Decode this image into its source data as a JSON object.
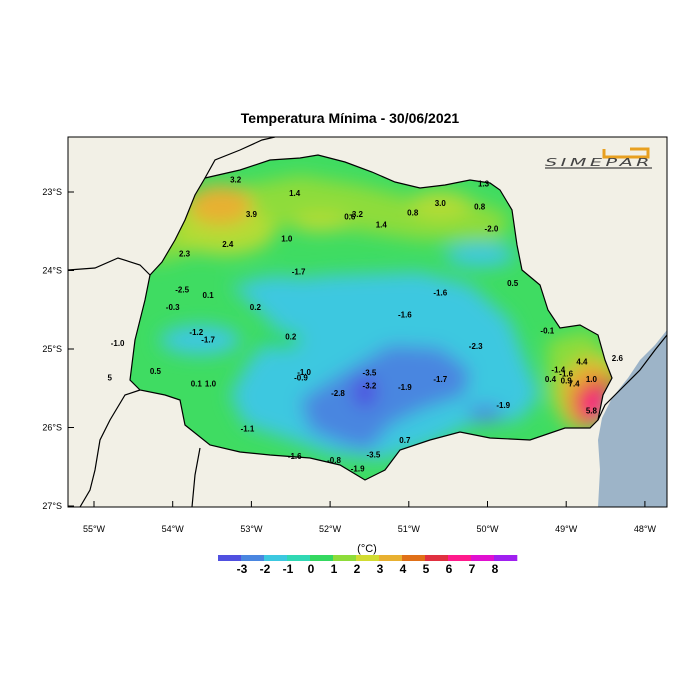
{
  "title": "Temperatura Mínima - 30/06/2021",
  "logo_text": "SIMEPAR",
  "unit_label": "(°C)",
  "lat_labels": [
    {
      "v": -23,
      "t": "23°S"
    },
    {
      "v": -24,
      "t": "24°S"
    },
    {
      "v": -25,
      "t": "25°S"
    },
    {
      "v": -26,
      "t": "26°S"
    },
    {
      "v": -27,
      "t": "27°S"
    }
  ],
  "lon_labels": [
    {
      "v": -55,
      "t": "55°W"
    },
    {
      "v": -54,
      "t": "54°W"
    },
    {
      "v": -53,
      "t": "53°W"
    },
    {
      "v": -52,
      "t": "52°W"
    },
    {
      "v": -51,
      "t": "51°W"
    },
    {
      "v": -50,
      "t": "50°W"
    },
    {
      "v": -49,
      "t": "49°W"
    },
    {
      "v": -48,
      "t": "48°W"
    }
  ],
  "colorbar": {
    "colors": [
      "#5050e0",
      "#4a86e0",
      "#3cc8e0",
      "#30d8b4",
      "#34d860",
      "#8edc3a",
      "#d2dc32",
      "#e8b030",
      "#e07018",
      "#e03040",
      "#ff1a8c",
      "#e010d0",
      "#a020f0"
    ],
    "labels": [
      "-3",
      "-2",
      "-1",
      "0",
      "1",
      "2",
      "3",
      "4",
      "5",
      "6",
      "7",
      "8"
    ]
  },
  "colors": {
    "land_bg": "#f2f0e6",
    "ocean": "#9db4c8",
    "border": "#000000"
  },
  "stations": [
    {
      "lon": -53.2,
      "lat": -22.88,
      "t": "3.2"
    },
    {
      "lon": -52.45,
      "lat": -23.05,
      "t": "1.4"
    },
    {
      "lon": -53.0,
      "lat": -23.32,
      "t": "3.9"
    },
    {
      "lon": -51.75,
      "lat": -23.35,
      "t": "0.6"
    },
    {
      "lon": -51.67,
      "lat": -23.32,
      "t": "-3.2"
    },
    {
      "lon": -51.35,
      "lat": -23.45,
      "t": "1.4"
    },
    {
      "lon": -50.95,
      "lat": -23.3,
      "t": "0.8"
    },
    {
      "lon": -50.6,
      "lat": -23.18,
      "t": "3.0"
    },
    {
      "lon": -50.1,
      "lat": -23.22,
      "t": "0.8"
    },
    {
      "lon": -50.05,
      "lat": -22.93,
      "t": "1.3"
    },
    {
      "lon": -49.95,
      "lat": -23.5,
      "t": "-2.0"
    },
    {
      "lon": -52.55,
      "lat": -23.63,
      "t": "1.0"
    },
    {
      "lon": -53.3,
      "lat": -23.7,
      "t": "2.4"
    },
    {
      "lon": -53.85,
      "lat": -23.82,
      "t": "2.3"
    },
    {
      "lon": -52.4,
      "lat": -24.05,
      "t": "-1.7"
    },
    {
      "lon": -53.88,
      "lat": -24.28,
      "t": "-2.5"
    },
    {
      "lon": -53.55,
      "lat": -24.35,
      "t": "0.1"
    },
    {
      "lon": -54.0,
      "lat": -24.5,
      "t": "-0.3"
    },
    {
      "lon": -52.95,
      "lat": -24.5,
      "t": "0.2"
    },
    {
      "lon": -50.6,
      "lat": -24.32,
      "t": "-1.6"
    },
    {
      "lon": -49.68,
      "lat": -24.2,
      "t": "0.5"
    },
    {
      "lon": -51.05,
      "lat": -24.6,
      "t": "-1.6"
    },
    {
      "lon": -53.7,
      "lat": -24.82,
      "t": "-1.2"
    },
    {
      "lon": -53.55,
      "lat": -24.92,
      "t": "-1.7"
    },
    {
      "lon": -52.5,
      "lat": -24.88,
      "t": "0.2"
    },
    {
      "lon": -54.7,
      "lat": -24.96,
      "t": "-1.0"
    },
    {
      "lon": -49.24,
      "lat": -24.8,
      "t": "-0.1"
    },
    {
      "lon": -50.15,
      "lat": -25.0,
      "t": "-2.3"
    },
    {
      "lon": -54.22,
      "lat": -25.32,
      "t": "0.5"
    },
    {
      "lon": -54.8,
      "lat": -25.4,
      "t": "5"
    },
    {
      "lon": -53.7,
      "lat": -25.48,
      "t": "0.1"
    },
    {
      "lon": -53.52,
      "lat": -25.48,
      "t": "1.0"
    },
    {
      "lon": -52.33,
      "lat": -25.33,
      "t": "-1.0"
    },
    {
      "lon": -52.37,
      "lat": -25.4,
      "t": "-0.9"
    },
    {
      "lon": -51.5,
      "lat": -25.34,
      "t": "-3.5"
    },
    {
      "lon": -51.5,
      "lat": -25.5,
      "t": "-3.2"
    },
    {
      "lon": -51.05,
      "lat": -25.52,
      "t": "-1.9"
    },
    {
      "lon": -50.6,
      "lat": -25.42,
      "t": "-1.7"
    },
    {
      "lon": -51.9,
      "lat": -25.6,
      "t": "-2.8"
    },
    {
      "lon": -49.8,
      "lat": -25.75,
      "t": "-1.9"
    },
    {
      "lon": -49.1,
      "lat": -25.3,
      "t": "-1.4"
    },
    {
      "lon": -49.0,
      "lat": -25.35,
      "t": "-1.6"
    },
    {
      "lon": -49.2,
      "lat": -25.42,
      "t": "0.4"
    },
    {
      "lon": -49.0,
      "lat": -25.44,
      "t": "0.9"
    },
    {
      "lon": -48.9,
      "lat": -25.48,
      "t": "7.4"
    },
    {
      "lon": -48.68,
      "lat": -25.42,
      "t": "1.0"
    },
    {
      "lon": -48.8,
      "lat": -25.2,
      "t": "4.4"
    },
    {
      "lon": -48.35,
      "lat": -25.15,
      "t": "2.6"
    },
    {
      "lon": -48.68,
      "lat": -25.82,
      "t": "5.8"
    },
    {
      "lon": -53.05,
      "lat": -26.05,
      "t": "-1.1"
    },
    {
      "lon": -51.05,
      "lat": -26.2,
      "t": "0.7"
    },
    {
      "lon": -52.45,
      "lat": -26.4,
      "t": "-1.6"
    },
    {
      "lon": -51.95,
      "lat": -26.45,
      "t": "-0.8"
    },
    {
      "lon": -51.45,
      "lat": -26.38,
      "t": "-3.5"
    },
    {
      "lon": -51.65,
      "lat": -26.56,
      "t": "-1.9"
    }
  ]
}
